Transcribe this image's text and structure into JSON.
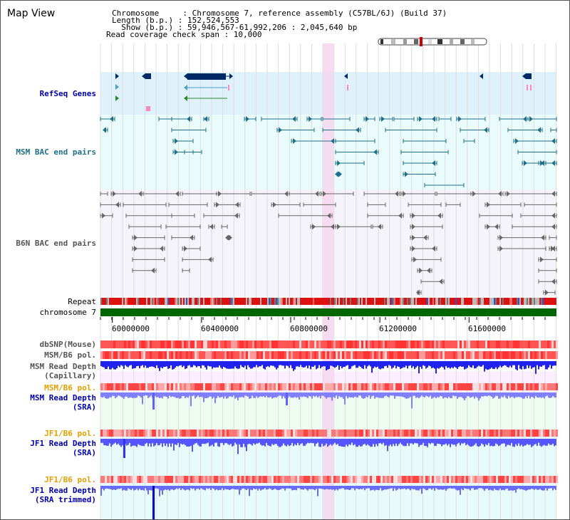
{
  "title": "Map View",
  "header": {
    "chromosome_line": "Chromosome     : Chromosome 7, reference assembly (C57BL/6J) (Build 37)",
    "length_line": "Length (b.p.) : 152,524,553",
    "show_line": "  Show (b.p.) : 59,946,567-61,992,206 : 2,045,640 bp",
    "coverage_line": "Read coverage check span : 10,000"
  },
  "tracks": {
    "refseq": {
      "label": "RefSeq Genes",
      "color": "#0000aa"
    },
    "msm_bac": {
      "label": "MSM BAC end pairs",
      "color": "#1f6f8b"
    },
    "b6n_bac": {
      "label": "B6N BAC end pairs",
      "color": "#555555"
    },
    "repeat": {
      "label": "Repeat"
    },
    "chromosome": {
      "label": "chromosome 7"
    },
    "dbsnp": {
      "label": "dbSNP(Mouse)",
      "color": "#555555"
    },
    "msm_pol": {
      "label": "MSM/B6 pol.",
      "color": "#555555"
    },
    "msm_depth_cap": {
      "label": "MSM Read Depth\n(Capillary)",
      "color": "#555555"
    },
    "msm_pol_sra": {
      "label": "MSM/B6 pol.",
      "color": "#e0a000"
    },
    "msm_depth_sra": {
      "label": "MSM Read Depth\n(SRA)",
      "color": "#0000aa"
    },
    "jf1_pol": {
      "label": "JF1/B6 pol.",
      "color": "#e0a000"
    },
    "jf1_depth": {
      "label": "JF1 Read Depth\n(SRA)",
      "color": "#0000aa"
    },
    "jf1_pol2": {
      "label": "JF1/B6 pol.",
      "color": "#e0a000"
    },
    "jf1_depth_trim": {
      "label": "JF1 Read Depth\n(SRA trimmed)",
      "color": "#0000aa"
    }
  },
  "axis": {
    "ticks": [
      "60000000",
      "60400000",
      "60800000",
      "61200000",
      "61600000"
    ],
    "tick_values": [
      60000000,
      60400000,
      60800000,
      61200000,
      61600000
    ],
    "range": [
      59946567,
      61992206
    ]
  },
  "colors": {
    "refseq_bg": "#dff2fb",
    "msm_bg": "#e9fbfb",
    "b6n_bg": "#f4f4fa",
    "highlight": "#f6d6ee",
    "chromosome": "#006600",
    "gene": "#002a66",
    "msm_feature": "#1f6f8b",
    "b6n_feature": "#666666",
    "depth_blue": "#2b2bff",
    "depth_light": "#8080ff",
    "pol_red": "#ee3333"
  }
}
